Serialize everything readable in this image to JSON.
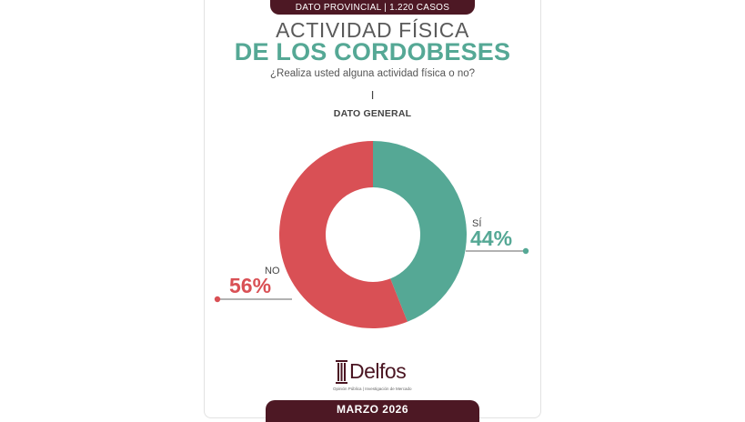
{
  "header": {
    "badge": "DATO PROVINCIAL | 1.220 CASOS",
    "title_line1": "ACTIVIDAD FÍSICA",
    "title_line2": "DE LOS CORDOBESES",
    "question": "¿Realiza usted alguna actividad física o no?",
    "section_number": "I",
    "section_title": "DATO GENERAL"
  },
  "chart_data": {
    "type": "pie",
    "donut": true,
    "slices": [
      {
        "label": "SÍ",
        "value": 44,
        "display": "44%",
        "color": "#55a895"
      },
      {
        "label": "NO",
        "value": 56,
        "display": "56%",
        "color": "#d95055"
      }
    ]
  },
  "footer": {
    "logo_name": "Delfos",
    "logo_tagline": "Opinión Pública | Investigación de Mercado",
    "date": "MARZO 2026"
  },
  "colors": {
    "maroon": "#4d1824",
    "teal": "#55a895",
    "red": "#d95055"
  }
}
